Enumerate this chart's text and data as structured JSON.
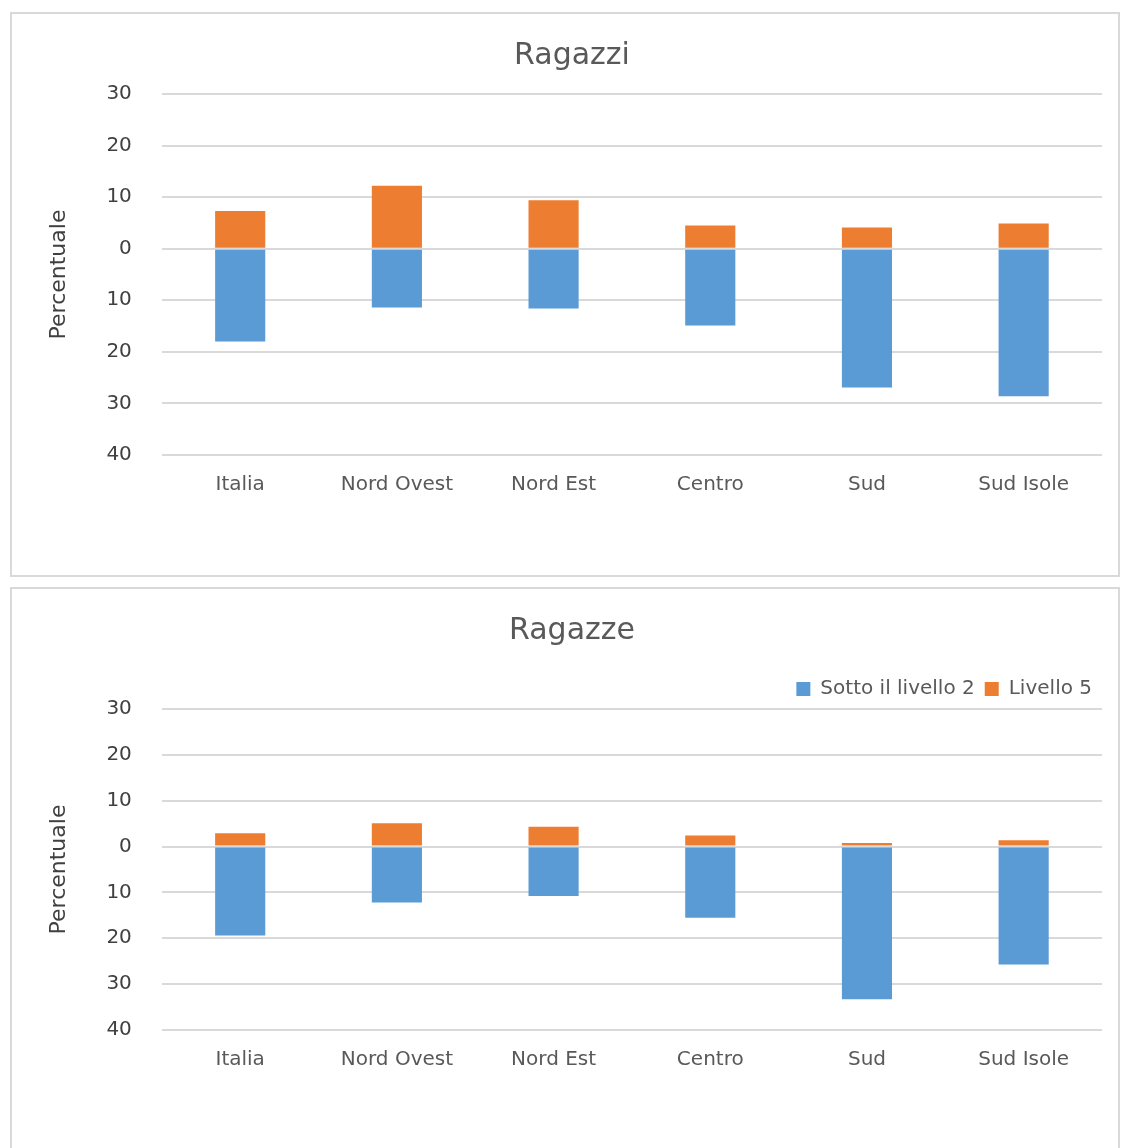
{
  "chart_data": [
    {
      "type": "bar",
      "title": "Ragazzi",
      "ylabel": "Percentuale",
      "stacked": true,
      "grid": "y",
      "legend": false,
      "categories": [
        "Italia",
        "Nord Ovest",
        "Nord Est",
        "Centro",
        "Sud",
        "Sud Isole"
      ],
      "series": [
        {
          "color": "#5b9bd5",
          "values": [
            -18.0,
            -11.4,
            -11.6,
            -14.9,
            -26.9,
            -28.6
          ]
        },
        {
          "color": "#ed7d31",
          "values": [
            7.3,
            12.2,
            9.4,
            4.5,
            4.1,
            4.9
          ]
        }
      ],
      "ylim": [
        -40,
        30
      ],
      "yticks": [
        {
          "value": -40,
          "label": "40"
        },
        {
          "value": -30,
          "label": "30"
        },
        {
          "value": -20,
          "label": "20"
        },
        {
          "value": -10,
          "label": "10"
        },
        0,
        10,
        20,
        30
      ]
    },
    {
      "type": "bar",
      "title": "Ragazze",
      "ylabel": "Percentuale",
      "stacked": true,
      "grid": "y",
      "legend": "top right",
      "categories": [
        "Italia",
        "Nord Ovest",
        "Nord Est",
        "Centro",
        "Sud",
        "Sud Isole"
      ],
      "series": [
        {
          "name": "Sotto il livello 2",
          "color": "#5b9bd5",
          "values": [
            -19.4,
            -12.2,
            -10.8,
            -15.5,
            -33.3,
            -25.7
          ]
        },
        {
          "name": "Livello 5",
          "color": "#ed7d31",
          "values": [
            2.9,
            5.1,
            4.3,
            2.4,
            0.8,
            1.4
          ]
        }
      ],
      "ylim": [
        -40,
        30
      ],
      "yticks": [
        {
          "value": -40,
          "label": "40"
        },
        {
          "value": -30,
          "label": "30"
        },
        {
          "value": -20,
          "label": "20"
        },
        {
          "value": -10,
          "label": "10"
        },
        0,
        10,
        20,
        30
      ]
    }
  ]
}
